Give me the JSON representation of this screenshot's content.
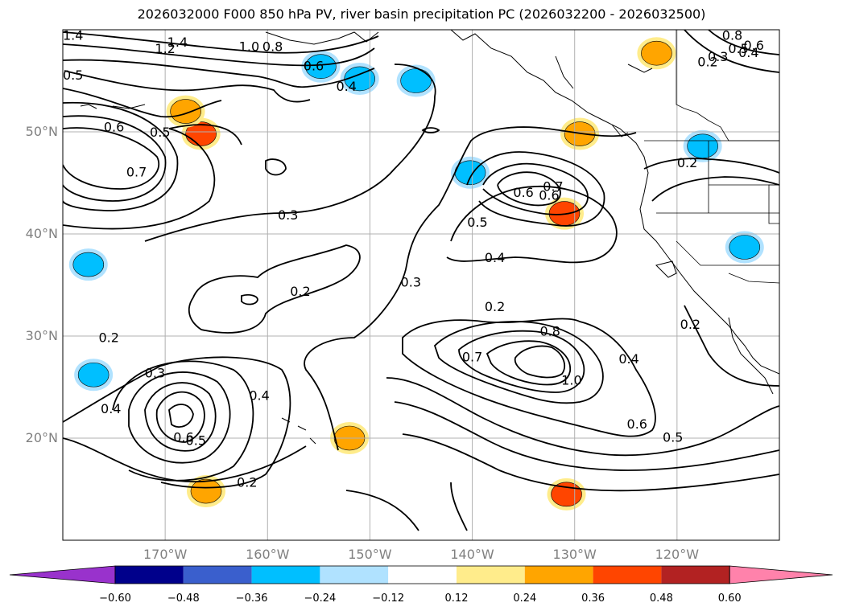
{
  "title": "2026032000 F000 850 hPa PV, river basin precipitation PC (2026032200 - 2026032500)",
  "latitude_labels": [
    {
      "text": "50°N",
      "lat": 50
    },
    {
      "text": "40°N",
      "lat": 40
    },
    {
      "text": "30°N",
      "lat": 30
    },
    {
      "text": "20°N",
      "lat": 20
    }
  ],
  "longitude_labels": [
    {
      "text": "170°W",
      "lon": -170
    },
    {
      "text": "160°W",
      "lon": -160
    },
    {
      "text": "150°W",
      "lon": -150
    },
    {
      "text": "140°W",
      "lon": -140
    },
    {
      "text": "130°W",
      "lon": -130
    },
    {
      "text": "120°W",
      "lon": -120
    }
  ],
  "map_extent": {
    "lon_min": -180,
    "lon_max": -110,
    "lat_min": 10,
    "lat_max": 60
  },
  "pv_contour_labels": [
    {
      "text": "1.4",
      "lon": -179.0,
      "lat": 59.5
    },
    {
      "text": "1.2",
      "lon": -170.0,
      "lat": 58.2
    },
    {
      "text": "1.4",
      "lon": -168.8,
      "lat": 58.8
    },
    {
      "text": "1.0",
      "lon": -161.8,
      "lat": 58.4
    },
    {
      "text": "0.8",
      "lon": -159.5,
      "lat": 58.4
    },
    {
      "text": "0.6",
      "lon": -155.5,
      "lat": 56.5
    },
    {
      "text": "0.4",
      "lon": -152.3,
      "lat": 54.5
    },
    {
      "text": "0.5",
      "lon": -179.0,
      "lat": 55.6
    },
    {
      "text": "0.6",
      "lon": -175.0,
      "lat": 50.5
    },
    {
      "text": "0.5",
      "lon": -170.5,
      "lat": 50.0
    },
    {
      "text": "0.7",
      "lon": -172.8,
      "lat": 46.1
    },
    {
      "text": "0.3",
      "lon": -158.0,
      "lat": 41.9
    },
    {
      "text": "0.2",
      "lon": -156.8,
      "lat": 34.4
    },
    {
      "text": "0.2",
      "lon": -175.5,
      "lat": 29.9
    },
    {
      "text": "0.3",
      "lon": -171.0,
      "lat": 26.4
    },
    {
      "text": "0.4",
      "lon": -175.3,
      "lat": 22.9
    },
    {
      "text": "0.6",
      "lon": -168.2,
      "lat": 20.1
    },
    {
      "text": "0.5",
      "lon": -167.0,
      "lat": 19.8
    },
    {
      "text": "0.4",
      "lon": -160.8,
      "lat": 24.2
    },
    {
      "text": "0.2",
      "lon": -162.0,
      "lat": 15.7
    },
    {
      "text": "0.3",
      "lon": -146.0,
      "lat": 35.3
    },
    {
      "text": "0.5",
      "lon": -139.5,
      "lat": 41.2
    },
    {
      "text": "0.4",
      "lon": -137.8,
      "lat": 37.7
    },
    {
      "text": "0.6",
      "lon": -132.5,
      "lat": 43.8
    },
    {
      "text": "0.7",
      "lon": -132.1,
      "lat": 44.7
    },
    {
      "text": "0.6",
      "lon": -135.0,
      "lat": 44.1
    },
    {
      "text": "0.2",
      "lon": -137.8,
      "lat": 32.9
    },
    {
      "text": "0.8",
      "lon": -132.4,
      "lat": 30.5
    },
    {
      "text": "0.7",
      "lon": -140.0,
      "lat": 28.0
    },
    {
      "text": "1.0",
      "lon": -130.3,
      "lat": 25.7
    },
    {
      "text": "0.4",
      "lon": -124.7,
      "lat": 27.8
    },
    {
      "text": "0.6",
      "lon": -123.9,
      "lat": 21.4
    },
    {
      "text": "0.5",
      "lon": -120.4,
      "lat": 20.1
    },
    {
      "text": "0.2",
      "lon": -118.7,
      "lat": 31.2
    },
    {
      "text": "0.2",
      "lon": -119.0,
      "lat": 47.0
    },
    {
      "text": "0.8",
      "lon": -114.6,
      "lat": 59.5
    },
    {
      "text": "0.6",
      "lon": -112.5,
      "lat": 58.5
    },
    {
      "text": "0.5",
      "lon": -114.0,
      "lat": 58.2
    },
    {
      "text": "0.4",
      "lon": -113.0,
      "lat": 57.8
    },
    {
      "text": "0.3",
      "lon": -116.0,
      "lat": 57.4
    },
    {
      "text": "0.2",
      "lon": -117.0,
      "lat": 56.9
    }
  ],
  "precip_anomalies": [
    {
      "kind": "positive",
      "level": 0.36,
      "lon": -166.5,
      "lat": 49.8
    },
    {
      "kind": "positive",
      "level": 0.24,
      "lon": -168.0,
      "lat": 52.0
    },
    {
      "kind": "positive",
      "level": 0.36,
      "lon": -131.0,
      "lat": 42.0
    },
    {
      "kind": "positive",
      "level": 0.24,
      "lon": -129.5,
      "lat": 49.8
    },
    {
      "kind": "positive",
      "level": 0.24,
      "lon": -152.0,
      "lat": 20.0
    },
    {
      "kind": "positive",
      "level": 0.36,
      "lon": -130.8,
      "lat": 14.5
    },
    {
      "kind": "positive",
      "level": 0.24,
      "lon": -166.0,
      "lat": 14.8
    },
    {
      "kind": "positive",
      "level": 0.24,
      "lon": -122.0,
      "lat": 57.7
    },
    {
      "kind": "negative",
      "level": -0.24,
      "lon": -151.0,
      "lat": 55.2
    },
    {
      "kind": "negative",
      "level": -0.24,
      "lon": -154.8,
      "lat": 56.4
    },
    {
      "kind": "negative",
      "level": -0.24,
      "lon": -145.5,
      "lat": 55.0
    },
    {
      "kind": "negative",
      "level": -0.24,
      "lon": -177.5,
      "lat": 37.0
    },
    {
      "kind": "negative",
      "level": -0.24,
      "lon": -177.0,
      "lat": 26.2
    },
    {
      "kind": "negative",
      "level": -0.24,
      "lon": -140.2,
      "lat": 46.0
    },
    {
      "kind": "negative",
      "level": -0.24,
      "lon": -117.5,
      "lat": 48.6
    },
    {
      "kind": "negative",
      "level": -0.24,
      "lon": -113.4,
      "lat": 38.7
    }
  ],
  "colorbar": {
    "ticks": [
      "−0.60",
      "−0.48",
      "−0.36",
      "−0.24",
      "−0.12",
      "0.12",
      "0.24",
      "0.36",
      "0.48",
      "0.60"
    ],
    "colors": [
      "#9932cc",
      "#00008b",
      "#3a5fcd",
      "#00bfff",
      "#b0e2ff",
      "#ffffff",
      "#ffec8b",
      "#ffa500",
      "#ff4500",
      "#b22222",
      "#ff82ab"
    ]
  },
  "colors": {
    "coastline": "#000000",
    "contour": "#000000",
    "gridline": "#b0b0b0",
    "axis_label": "#808080"
  }
}
